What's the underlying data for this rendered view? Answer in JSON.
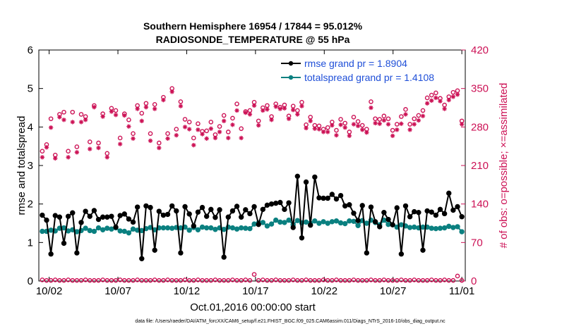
{
  "chart_data": {
    "type": "line",
    "title_line1": "Southern Hemisphere 16954 / 17844 = 95.012%",
    "title_line2": "RADIOSONDE_TEMPERATURE @ 55 hPa",
    "xlabel": "Oct.01,2016 00:00:00 start",
    "ylabel_left": "rmse and totalspread",
    "ylabel_right": "# of obs: o=possible; ×=assimilated",
    "footer": "data file: /Users/raeder/DAI/ATM_forcXX/CAM6_setup/f.e21.FHIST_BGC.f09_025.CAM6assim.011/Diags_NTrS_2016-10/obs_diag_output.nc",
    "x_tick_labels": [
      "10/02",
      "10/07",
      "10/12",
      "10/17",
      "10/22",
      "10/27",
      "11/01"
    ],
    "x_tick_days": [
      2,
      7,
      12,
      17,
      22,
      27,
      32
    ],
    "xlim_days": [
      1.25,
      32.25
    ],
    "left_ylim": [
      0,
      6
    ],
    "left_ticks": [
      "0",
      "1",
      "2",
      "3",
      "4",
      "5",
      "6"
    ],
    "right_ylim": [
      0,
      420
    ],
    "right_ticks": [
      "0",
      "70",
      "140",
      "210",
      "280",
      "350",
      "420"
    ],
    "colors": {
      "rmse": "#000000",
      "spread": "#0b8080",
      "obs": "#cc1155",
      "legend_text": "#1f4fd8"
    },
    "legend": [
      {
        "label": "rmse grand pr = 1.8904"
      },
      {
        "label": "totalspread grand pr = 1.4108"
      }
    ],
    "series": [
      {
        "name": "rmse",
        "axis": "left",
        "values": [
          1.71,
          1.58,
          0.7,
          1.7,
          1.66,
          0.98,
          1.68,
          1.77,
          0.73,
          1.52,
          1.81,
          1.68,
          1.83,
          1.6,
          1.66,
          1.66,
          1.68,
          1.4,
          1.7,
          1.74,
          1.61,
          1.53,
          1.92,
          0.58,
          1.95,
          1.91,
          0.8,
          1.81,
          1.71,
          1.73,
          1.95,
          1.82,
          0.73,
          1.93,
          1.74,
          1.43,
          1.79,
          1.91,
          1.68,
          1.86,
          1.65,
          1.85,
          0.62,
          1.66,
          1.82,
          1.94,
          1.66,
          1.85,
          1.75,
          1.93,
          1.47,
          1.86,
          1.97,
          2.0,
          2.02,
          2.04,
          1.86,
          2.03,
          1.39,
          2.72,
          1.12,
          2.57,
          1.45,
          2.7,
          2.16,
          2.15,
          2.15,
          2.25,
          2.13,
          2.22,
          1.95,
          1.98,
          1.76,
          1.57,
          1.96,
          0.73,
          1.92,
          1.54,
          1.41,
          1.78,
          1.6,
          1.46,
          1.9,
          0.7,
          1.95,
          1.67,
          1.8,
          1.78,
          0.8,
          1.82,
          1.79,
          1.71,
          1.86,
          1.75,
          2.28,
          1.84,
          1.93,
          1.67
        ]
      },
      {
        "name": "totalspread",
        "axis": "left",
        "values": [
          1.29,
          1.29,
          1.32,
          1.3,
          1.37,
          1.38,
          1.3,
          1.33,
          1.28,
          1.31,
          1.37,
          1.31,
          1.29,
          1.38,
          1.33,
          1.37,
          1.35,
          1.38,
          1.3,
          1.29,
          1.25,
          1.35,
          1.32,
          1.31,
          1.36,
          1.39,
          1.33,
          1.38,
          1.38,
          1.38,
          1.37,
          1.39,
          1.38,
          1.4,
          1.32,
          1.39,
          1.33,
          1.4,
          1.38,
          1.38,
          1.34,
          1.38,
          1.34,
          1.4,
          1.38,
          1.35,
          1.38,
          1.37,
          1.36,
          1.48,
          1.51,
          1.52,
          1.43,
          1.48,
          1.58,
          1.53,
          1.52,
          1.58,
          1.46,
          1.57,
          1.51,
          1.53,
          1.5,
          1.56,
          1.5,
          1.54,
          1.5,
          1.54,
          1.56,
          1.51,
          1.49,
          1.56,
          1.55,
          1.44,
          1.57,
          1.5,
          1.58,
          1.52,
          1.46,
          1.58,
          1.47,
          1.46,
          1.4,
          1.46,
          1.43,
          1.39,
          1.4,
          1.38,
          1.4,
          1.4,
          1.37,
          1.36,
          1.37,
          1.38,
          1.42,
          1.39,
          1.41,
          1.28
        ]
      },
      {
        "name": "obs_possible",
        "axis": "right",
        "values": [
          236,
          248,
          295,
          229,
          303,
          307,
          236,
          307,
          244,
          303,
          299,
          253,
          319,
          251,
          304,
          232,
          314,
          310,
          260,
          304,
          293,
          268,
          319,
          305,
          323,
          268,
          321,
          251,
          334,
          268,
          350,
          276,
          326,
          294,
          289,
          260,
          286,
          272,
          273,
          289,
          266,
          281,
          301,
          271,
          296,
          322,
          277,
          308,
          310,
          325,
          291,
          315,
          319,
          299,
          322,
          316,
          320,
          300,
          318,
          310,
          325,
          284,
          298,
          283,
          282,
          276,
          279,
          289,
          274,
          294,
          287,
          271,
          298,
          290,
          283,
          276,
          326,
          295,
          294,
          300,
          295,
          274,
          285,
          299,
          312,
          285,
          295,
          301,
          310,
          333,
          338,
          342,
          332,
          320,
          335,
          343,
          346,
          291
        ]
      },
      {
        "name": "obs_assimilated",
        "axis": "right",
        "values": [
          225,
          243,
          279,
          223,
          298,
          293,
          225,
          289,
          234,
          289,
          293,
          240,
          316,
          242,
          299,
          225,
          308,
          302,
          249,
          301,
          281,
          259,
          313,
          291,
          316,
          255,
          313,
          242,
          329,
          259,
          344,
          265,
          318,
          280,
          276,
          247,
          275,
          267,
          259,
          277,
          260,
          271,
          291,
          260,
          284,
          310,
          260,
          306,
          303,
          319,
          283,
          310,
          312,
          293,
          317,
          313,
          314,
          295,
          311,
          303,
          318,
          278,
          291,
          277,
          276,
          271,
          271,
          283,
          265,
          284,
          279,
          264,
          285,
          282,
          275,
          270,
          315,
          287,
          286,
          292,
          285,
          264,
          275,
          286,
          303,
          275,
          285,
          292,
          300,
          323,
          328,
          333,
          327,
          313,
          329,
          335,
          339,
          285
        ]
      },
      {
        "name": "obs_rejected",
        "axis": "right",
        "values": [
          2,
          1,
          1,
          2,
          1,
          1,
          2,
          1,
          1,
          1,
          2,
          1,
          1,
          1,
          2,
          1,
          1,
          1,
          2,
          1,
          1,
          1,
          2,
          1,
          1,
          1,
          2,
          1,
          1,
          2,
          1,
          1,
          1,
          2,
          1,
          1,
          2,
          1,
          1,
          1,
          2,
          1,
          1,
          1,
          2,
          1,
          1,
          2,
          1,
          12,
          1,
          2,
          1,
          1,
          2,
          1,
          1,
          1,
          2,
          1,
          1,
          2,
          1,
          1,
          1,
          2,
          1,
          1,
          2,
          1,
          1,
          1,
          2,
          1,
          1,
          1,
          2,
          1,
          1,
          2,
          1,
          1,
          1,
          2,
          1,
          1,
          2,
          1,
          1,
          1,
          2,
          1,
          1,
          2,
          1,
          1,
          9,
          1
        ]
      }
    ]
  }
}
